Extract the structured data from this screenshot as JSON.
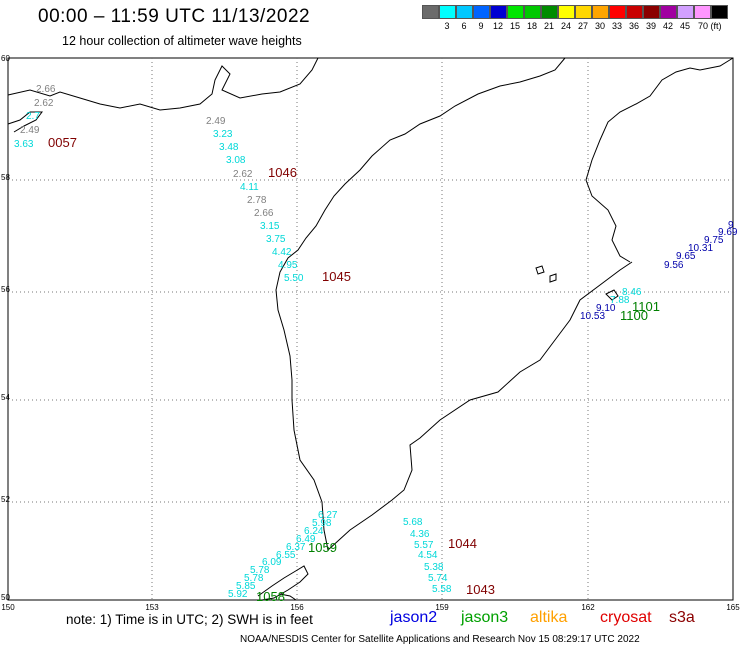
{
  "header": {
    "title": "00:00 – 11:59 UTC 11/13/2022",
    "subtitle": "12 hour collection of altimeter wave heights"
  },
  "scale": {
    "swatches": [
      {
        "color": "#6b6b6b",
        "label": ""
      },
      {
        "color": "#00ffff",
        "label": "3"
      },
      {
        "color": "#00c8ff",
        "label": "6"
      },
      {
        "color": "#0064ff",
        "label": "9"
      },
      {
        "color": "#0000d2",
        "label": "12"
      },
      {
        "color": "#00e600",
        "label": "15"
      },
      {
        "color": "#00c800",
        "label": "18"
      },
      {
        "color": "#008c00",
        "label": "21"
      },
      {
        "color": "#ffff00",
        "label": "24"
      },
      {
        "color": "#ffd700",
        "label": "27"
      },
      {
        "color": "#ffa500",
        "label": "30"
      },
      {
        "color": "#ff0000",
        "label": "33"
      },
      {
        "color": "#c80000",
        "label": "36"
      },
      {
        "color": "#8b0000",
        "label": "39"
      },
      {
        "color": "#a000a0",
        "label": "42"
      },
      {
        "color": "#d2a0ff",
        "label": "45"
      },
      {
        "color": "#ff96ff",
        "label": "70 (ft)"
      },
      {
        "color": "#000000",
        "label": ""
      }
    ]
  },
  "axes": {
    "lat_labels": [
      "60",
      "58",
      "56",
      "54",
      "52",
      "50"
    ],
    "lon_labels": [
      "150",
      "153",
      "156",
      "159",
      "162",
      "165"
    ]
  },
  "readings": [
    {
      "text": "2.66",
      "color": "#808080"
    },
    {
      "text": "2.62",
      "color": "#808080"
    },
    {
      "text": "2.7",
      "color": "#00d8d8"
    },
    {
      "text": "2.49",
      "color": "#808080"
    },
    {
      "text": "3.63",
      "color": "#00d8d8"
    },
    {
      "text": "0057",
      "color": "#800000"
    },
    {
      "text": "2.49",
      "color": "#808080"
    },
    {
      "text": "3.23",
      "color": "#00d8d8"
    },
    {
      "text": "3.48",
      "color": "#00d8d8"
    },
    {
      "text": "3.08",
      "color": "#00d8d8"
    },
    {
      "text": "2.62",
      "color": "#808080"
    },
    {
      "text": "1046",
      "color": "#800000"
    },
    {
      "text": "4.11",
      "color": "#00d8d8"
    },
    {
      "text": "2.78",
      "color": "#808080"
    },
    {
      "text": "2.66",
      "color": "#808080"
    },
    {
      "text": "3.15",
      "color": "#00d8d8"
    },
    {
      "text": "3.75",
      "color": "#00d8d8"
    },
    {
      "text": "4.42",
      "color": "#00d8d8"
    },
    {
      "text": "4.95",
      "color": "#00d8d8"
    },
    {
      "text": "5.50",
      "color": "#00d8d8"
    },
    {
      "text": "1045",
      "color": "#800000"
    },
    {
      "text": "9",
      "color": "#0000aa"
    },
    {
      "text": "9.69",
      "color": "#0000aa"
    },
    {
      "text": "9.75",
      "color": "#0000aa"
    },
    {
      "text": "10.31",
      "color": "#0000aa"
    },
    {
      "text": "9.65",
      "color": "#0000aa"
    },
    {
      "text": "9.56",
      "color": "#0000aa"
    },
    {
      "text": "8.46",
      "color": "#00d8d8"
    },
    {
      "text": "7.88",
      "color": "#00d8d8"
    },
    {
      "text": "9.10",
      "color": "#0000aa"
    },
    {
      "text": "10.53",
      "color": "#0000aa"
    },
    {
      "text": "1101",
      "color": "#008000"
    },
    {
      "text": "1100",
      "color": "#008000"
    },
    {
      "text": "6.27",
      "color": "#00d8d8"
    },
    {
      "text": "5.98",
      "color": "#00d8d8"
    },
    {
      "text": "6.24",
      "color": "#00d8d8"
    },
    {
      "text": "6.49",
      "color": "#00d8d8"
    },
    {
      "text": "6.37",
      "color": "#00d8d8"
    },
    {
      "text": "6.55",
      "color": "#00d8d8"
    },
    {
      "text": "6.09",
      "color": "#00d8d8"
    },
    {
      "text": "5.78",
      "color": "#00d8d8"
    },
    {
      "text": "5.78",
      "color": "#00d8d8"
    },
    {
      "text": "5.85",
      "color": "#00d8d8"
    },
    {
      "text": "5.92",
      "color": "#00d8d8"
    },
    {
      "text": "1059",
      "color": "#008000"
    },
    {
      "text": "1058",
      "color": "#008000"
    },
    {
      "text": "5.68",
      "color": "#00d8d8"
    },
    {
      "text": "4.36",
      "color": "#00d8d8"
    },
    {
      "text": "5.57",
      "color": "#00d8d8"
    },
    {
      "text": "4.54",
      "color": "#00d8d8"
    },
    {
      "text": "5.38",
      "color": "#00d8d8"
    },
    {
      "text": "5.74",
      "color": "#00d8d8"
    },
    {
      "text": "5.58",
      "color": "#00d8d8"
    },
    {
      "text": "1044",
      "color": "#800000"
    },
    {
      "text": "1043",
      "color": "#800000"
    }
  ],
  "footer": {
    "note": "note:  1) Time is in UTC;  2) SWH is in feet",
    "satellites": [
      {
        "name": "jason2",
        "color": "#0000e0"
      },
      {
        "name": "jason3",
        "color": "#00a000"
      },
      {
        "name": "altika",
        "color": "#ffa000"
      },
      {
        "name": "cryosat",
        "color": "#e00000"
      },
      {
        "name": "s3a",
        "color": "#8b0000"
      }
    ],
    "credit": "NOAA/NESDIS Center for Satellite Applications and Research     Nov 15 08:29:17 UTC 2022"
  }
}
